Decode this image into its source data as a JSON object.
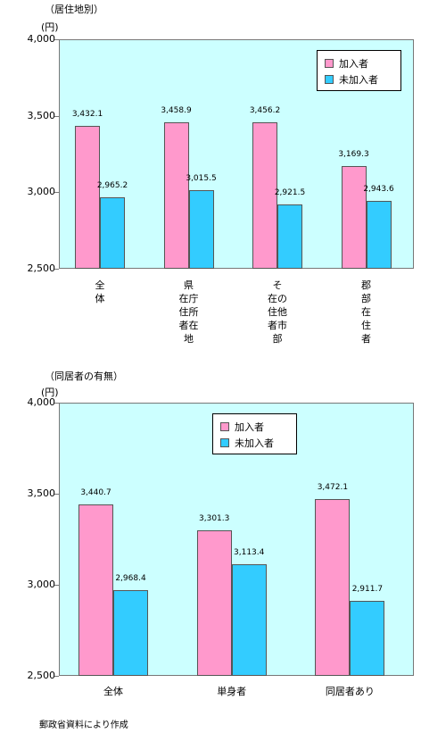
{
  "chart_data": [
    {
      "type": "bar",
      "title": "（居住地別）",
      "unit": "(円)",
      "yticks": [
        "4,000",
        "3,500",
        "3,000",
        "2,500"
      ],
      "ylim": [
        2500,
        4000
      ],
      "categories": [
        "全\n体",
        "県\n在庁\n住所\n者在\n地",
        "そ\n在の\n住他\n者市\n部",
        "郡\n部\n在\n住\n者"
      ],
      "series": [
        {
          "name": "加入者",
          "color": "#ff99cc",
          "values": [
            3432.1,
            3458.9,
            3456.2,
            3169.3
          ],
          "labels": [
            "3,432.1",
            "3,458.9",
            "3,456.2",
            "3,169.3"
          ]
        },
        {
          "name": "未加入者",
          "color": "#33ccff",
          "values": [
            2965.2,
            3015.5,
            2921.5,
            2943.6
          ],
          "labels": [
            "2,965.2",
            "3,015.5",
            "2,921.5",
            "2,943.6"
          ]
        }
      ],
      "legend_position": "top-right"
    },
    {
      "type": "bar",
      "title": "（同居者の有無）",
      "unit": "(円)",
      "yticks": [
        "4,000",
        "3,500",
        "3,000",
        "2,500"
      ],
      "ylim": [
        2500,
        4000
      ],
      "categories": [
        "全体",
        "単身者",
        "同居者あり"
      ],
      "series": [
        {
          "name": "加入者",
          "color": "#ff99cc",
          "values": [
            3440.7,
            3301.3,
            3472.1
          ],
          "labels": [
            "3,440.7",
            "3,301.3",
            "3,472.1"
          ]
        },
        {
          "name": "未加入者",
          "color": "#33ccff",
          "values": [
            2968.4,
            3113.4,
            2911.7
          ],
          "labels": [
            "2,968.4",
            "3,113.4",
            "2,911.7"
          ]
        }
      ],
      "legend_position": "top-center"
    }
  ],
  "source": "郵政省資料により作成"
}
